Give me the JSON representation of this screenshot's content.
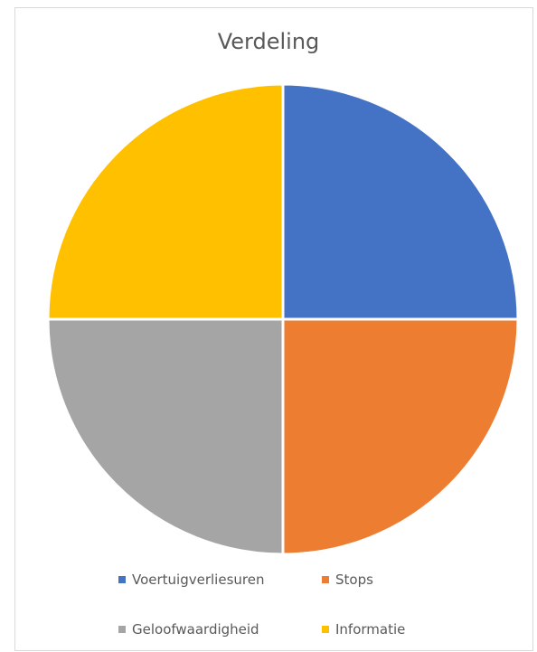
{
  "chart_data": {
    "type": "pie",
    "title": "Verdeling",
    "categories": [
      "Voertuigverliesuren",
      "Stops",
      "Geloofwaardigheid",
      "Informatie"
    ],
    "values": [
      25,
      25,
      25,
      25
    ],
    "colors": [
      "#4472C4",
      "#ED7D31",
      "#A5A5A5",
      "#FFC000"
    ],
    "legend_position": "bottom"
  }
}
